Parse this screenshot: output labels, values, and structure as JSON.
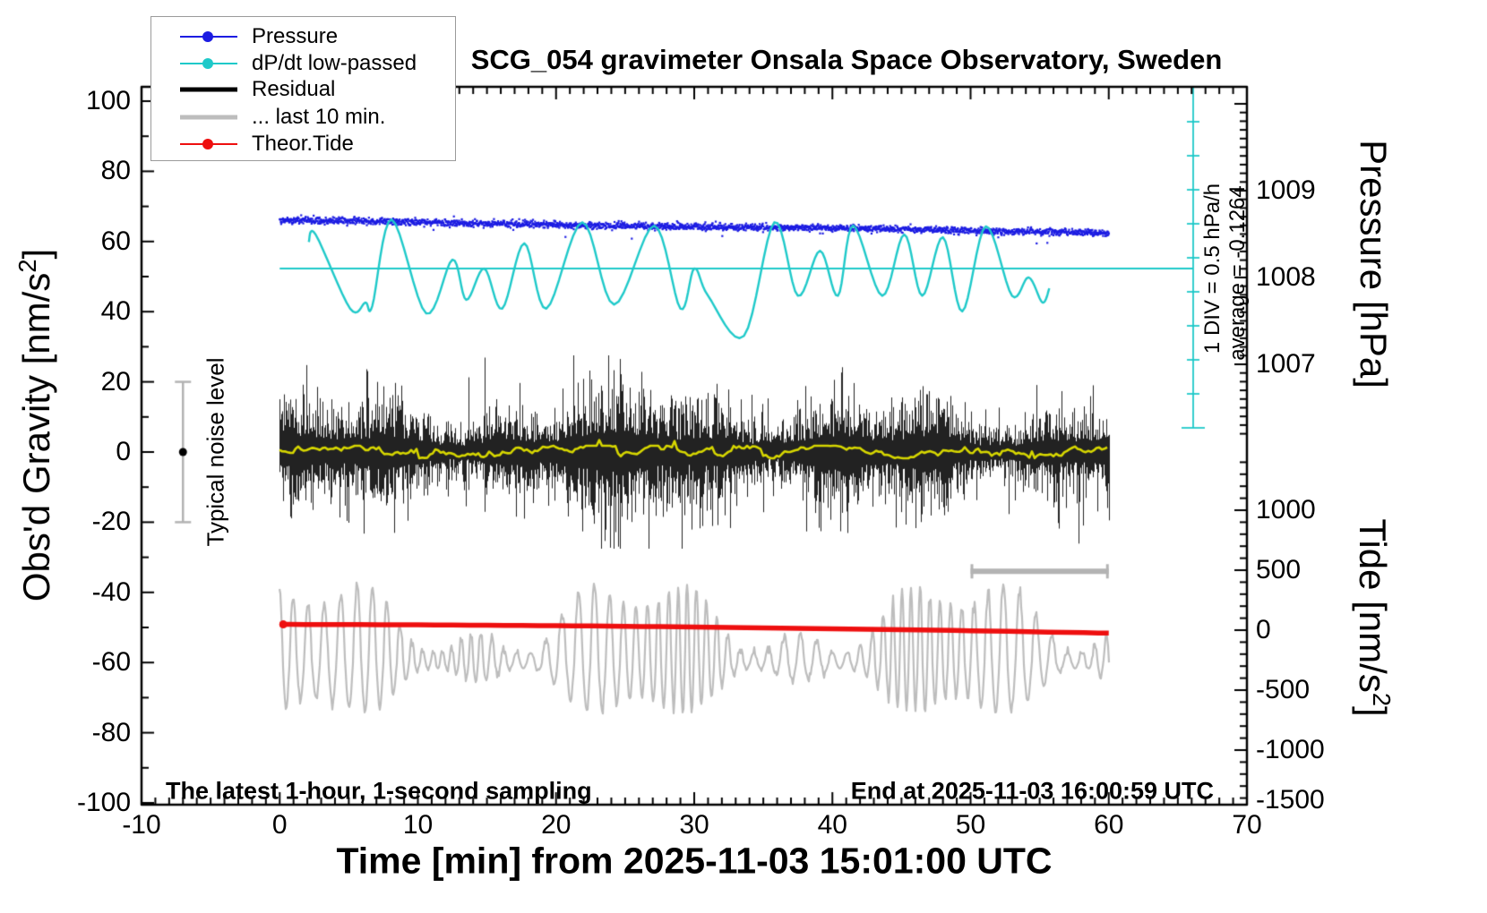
{
  "title": "SCG_054 gravimeter Onsala Space Observatory, Sweden",
  "colors": {
    "pressure_blue": "#1c1ce2",
    "dpdt_cyan": "#1ec9c9",
    "residual_black": "#000000",
    "last10_gray": "#bdbdbd",
    "tide_red": "#ee0f0f",
    "smooth_yellow": "#d6d600",
    "noise_bar_gray": "#b3b3b3",
    "axis_black": "#000000"
  },
  "legend": {
    "items": [
      {
        "label": "Pressure",
        "style": "dot-line",
        "color": "#1c1ce2"
      },
      {
        "label": "dP/dt low-passed",
        "style": "dot-line",
        "color": "#1ec9c9"
      },
      {
        "label": "Residual",
        "style": "thick-line",
        "color": "#000000"
      },
      {
        "label": "... last 10 min.",
        "style": "thick-line",
        "color": "#bdbdbd"
      },
      {
        "label": "Theor.Tide",
        "style": "dot-line",
        "color": "#ee0f0f"
      }
    ]
  },
  "axes": {
    "x": {
      "label": "Time [min] from 2025-11-03 15:01:00 UTC",
      "min": -10,
      "max": 70,
      "minor_step": 1,
      "major_step": 10,
      "tick_values": [
        -10,
        0,
        10,
        20,
        30,
        40,
        50,
        60,
        70
      ],
      "tick_labels": [
        "-10",
        "0",
        "10",
        "20",
        "30",
        "40",
        "50",
        "60",
        "70"
      ]
    },
    "gravity": {
      "label_pre": "Obs'd Gravity [nm/s",
      "label_sup": "2",
      "label_post": "]",
      "min": -100,
      "max": 100,
      "minor_step": 10,
      "major_step": 20,
      "tick_values": [
        -100,
        -80,
        -60,
        -40,
        -20,
        0,
        20,
        40,
        60,
        80,
        100
      ],
      "tick_labels": [
        "-100",
        "-80",
        "-60",
        "-40",
        "-20",
        "0",
        "20",
        "40",
        "60",
        "80",
        "100"
      ]
    },
    "pressure": {
      "label": "Pressure [hPa]",
      "minor_step": 0.1,
      "major_step": 1,
      "tick_values": [
        1009,
        1008,
        1007
      ],
      "tick_labels": [
        "1009",
        "1008",
        "1007"
      ]
    },
    "tide": {
      "label_pre": "Tide [nm/s",
      "label_sup": "2",
      "label_post": "]",
      "minor_step": 100,
      "major_step": 500,
      "tick_values": [
        1000,
        500,
        0,
        -500,
        -1000,
        -1500
      ],
      "tick_labels": [
        "1000",
        "500",
        "0",
        "-500",
        "-1000",
        "-1500"
      ]
    }
  },
  "annotations": {
    "div_scale": "1 DIV = 0.5 hPa/h",
    "average": "average = -0.1264",
    "noise_level": "Typical noise level",
    "bottom_left": "The latest 1-hour, 1-second sampling",
    "bottom_right": "End at 2025-11-03 16:00:59 UTC"
  },
  "chart_data": {
    "type": "line",
    "title": "SCG_054 gravimeter Onsala Space Observatory, Sweden",
    "xlabel": "Time [min] from 2025-11-03 15:01:00 UTC",
    "x_range": [
      -10,
      70
    ],
    "data_x_range": [
      0,
      60
    ],
    "y_axes": {
      "gravity": {
        "label": "Obs'd Gravity [nm/s2]",
        "range": [
          -100,
          100
        ],
        "side": "left"
      },
      "pressure": {
        "label": "Pressure [hPa]",
        "ticks": [
          1007,
          1008,
          1009
        ],
        "side": "right-top"
      },
      "tide": {
        "label": "Tide [nm/s2]",
        "range": [
          -1500,
          1000
        ],
        "side": "right-bottom"
      }
    },
    "series": [
      {
        "name": "Pressure",
        "axis": "pressure",
        "unit": "hPa",
        "style": "dense-dots",
        "trend_points": [
          [
            0,
            1008.66
          ],
          [
            15,
            1008.62
          ],
          [
            30,
            1008.59
          ],
          [
            45,
            1008.55
          ],
          [
            60,
            1008.52
          ]
        ],
        "noise_sd_hPa": 0.02,
        "average_dPdt_hPa_per_h": -0.1264
      },
      {
        "name": "dP/dt low-passed",
        "axis": "dpdt",
        "unit": "hPa/h",
        "zero_line_gravity_level": 50,
        "div_scale_hPa_per_h": 0.5,
        "points": [
          [
            2.1,
            0.39
          ],
          [
            2.6,
            0.5
          ],
          [
            5.1,
            -0.59
          ],
          [
            6.2,
            -0.5
          ],
          [
            6.7,
            -0.55
          ],
          [
            8.1,
            0.72
          ],
          [
            10.6,
            -0.66
          ],
          [
            12.5,
            0.13
          ],
          [
            13.5,
            -0.46
          ],
          [
            14.8,
            0.0
          ],
          [
            16.1,
            -0.59
          ],
          [
            17.7,
            0.37
          ],
          [
            19.3,
            -0.59
          ],
          [
            21.9,
            0.68
          ],
          [
            24.2,
            -0.53
          ],
          [
            27.1,
            0.63
          ],
          [
            29.0,
            -0.59
          ],
          [
            30.0,
            0.0
          ],
          [
            31.0,
            -0.4
          ],
          [
            33.6,
            -0.99
          ],
          [
            35.8,
            0.68
          ],
          [
            37.5,
            -0.4
          ],
          [
            39.1,
            0.26
          ],
          [
            40.4,
            -0.4
          ],
          [
            41.5,
            0.63
          ],
          [
            43.6,
            -0.4
          ],
          [
            45.2,
            0.5
          ],
          [
            46.5,
            -0.4
          ],
          [
            48.0,
            0.46
          ],
          [
            49.4,
            -0.63
          ],
          [
            51.1,
            0.62
          ],
          [
            53.0,
            -0.4
          ],
          [
            54.2,
            -0.13
          ],
          [
            55.2,
            -0.5
          ],
          [
            55.7,
            -0.29
          ]
        ]
      },
      {
        "name": "Residual",
        "axis": "gravity",
        "unit": "nm/s2",
        "style": "noise-band",
        "mean": 0,
        "typical_halfwidth": 10,
        "spike_max": 28
      },
      {
        "name": "Residual smoothed",
        "axis": "gravity",
        "unit": "nm/s2",
        "style": "smooth-line",
        "mean": 0,
        "max_dev": 2
      },
      {
        "name": "... last 10 min.",
        "axis": "gravity",
        "unit": "nm/s2",
        "style": "oscillation",
        "center": -60,
        "peak_range": [
          -88,
          -33
        ],
        "period_min": 1.0
      },
      {
        "name": "Theor.Tide",
        "axis": "tide",
        "unit": "nm/s2",
        "style": "thick-line",
        "points": [
          [
            0,
            48
          ],
          [
            10,
            44
          ],
          [
            20,
            37
          ],
          [
            30,
            26
          ],
          [
            40,
            12
          ],
          [
            50,
            -5
          ],
          [
            60,
            -25
          ]
        ]
      }
    ],
    "markers": {
      "noise_level_bar": {
        "label": "Typical noise level",
        "axis": "gravity",
        "center": 0,
        "half_extent": 20,
        "x_min": -7
      },
      "ten_minute_bar": {
        "from_min": 50,
        "to_min": 60,
        "gravity_level": -34
      },
      "dpdt_scale_bar": {
        "divisions": 10,
        "div_value": "0.5 hPa/h"
      }
    },
    "legend_position": "top-left",
    "grid": false
  }
}
